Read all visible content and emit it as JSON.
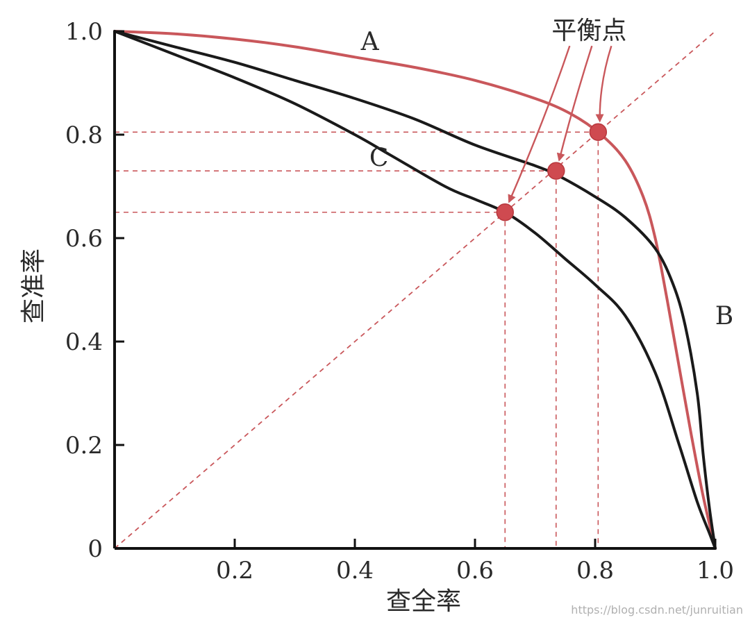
{
  "chart_data": {
    "type": "line",
    "xlabel": "查全率",
    "ylabel": "查准率",
    "xlim": [
      0,
      1.0
    ],
    "ylim": [
      0,
      1.0
    ],
    "x_ticks": [
      {
        "value": 0.2,
        "label": "0.2"
      },
      {
        "value": 0.4,
        "label": "0.4"
      },
      {
        "value": 0.6,
        "label": "0.6"
      },
      {
        "value": 0.8,
        "label": "0.8"
      },
      {
        "value": 1.0,
        "label": "1.0"
      }
    ],
    "y_ticks": [
      {
        "value": 0,
        "label": "0"
      },
      {
        "value": 0.2,
        "label": "0.2"
      },
      {
        "value": 0.4,
        "label": "0.4"
      },
      {
        "value": 0.6,
        "label": "0.6"
      },
      {
        "value": 0.8,
        "label": "0.8"
      },
      {
        "value": 1.0,
        "label": "1.0"
      }
    ],
    "grid": false,
    "series": [
      {
        "name": "A",
        "color": "#c9575b",
        "x": [
          0.0,
          0.1,
          0.2,
          0.3,
          0.4,
          0.5,
          0.6,
          0.7,
          0.76,
          0.81,
          0.85,
          0.88,
          0.9,
          0.92,
          0.94,
          0.96,
          0.98,
          1.0
        ],
        "y": [
          1.0,
          0.995,
          0.985,
          0.97,
          0.95,
          0.93,
          0.905,
          0.87,
          0.84,
          0.8,
          0.75,
          0.68,
          0.6,
          0.48,
          0.35,
          0.22,
          0.1,
          0.0
        ]
      },
      {
        "name": "B",
        "color": "#1a1a1a",
        "x": [
          0.0,
          0.1,
          0.2,
          0.3,
          0.4,
          0.5,
          0.6,
          0.7,
          0.74,
          0.8,
          0.85,
          0.9,
          0.93,
          0.95,
          0.97,
          0.98,
          0.99,
          1.0
        ],
        "y": [
          1.0,
          0.97,
          0.94,
          0.905,
          0.87,
          0.83,
          0.78,
          0.74,
          0.72,
          0.68,
          0.64,
          0.58,
          0.51,
          0.43,
          0.3,
          0.18,
          0.08,
          0.0
        ]
      },
      {
        "name": "C",
        "color": "#1a1a1a",
        "x": [
          0.0,
          0.1,
          0.2,
          0.3,
          0.4,
          0.46,
          0.55,
          0.6,
          0.65,
          0.7,
          0.75,
          0.8,
          0.85,
          0.9,
          0.94,
          0.97,
          0.99,
          1.0
        ],
        "y": [
          1.0,
          0.955,
          0.91,
          0.86,
          0.8,
          0.76,
          0.7,
          0.675,
          0.65,
          0.61,
          0.56,
          0.51,
          0.45,
          0.34,
          0.2,
          0.09,
          0.03,
          0.0
        ]
      }
    ],
    "reference_line": {
      "x": [
        0,
        1.0
      ],
      "y": [
        0,
        1.0
      ],
      "style": "dashed",
      "color": "#c9575b"
    },
    "balance_points": [
      {
        "label": "C",
        "x": 0.65,
        "y": 0.65
      },
      {
        "label": "B",
        "x": 0.735,
        "y": 0.73
      },
      {
        "label": "A",
        "x": 0.805,
        "y": 0.805
      }
    ],
    "curve_labels": [
      {
        "text": "A",
        "x": 0.425,
        "y": 0.98
      },
      {
        "text": "C",
        "x": 0.44,
        "y": 0.755
      },
      {
        "text": "B",
        "x": 1.015,
        "y": 0.45
      }
    ],
    "annotation": {
      "text": "平衡点",
      "x": 0.79,
      "y": 0.985
    }
  },
  "watermark": "https://blog.csdn.net/junruitian"
}
